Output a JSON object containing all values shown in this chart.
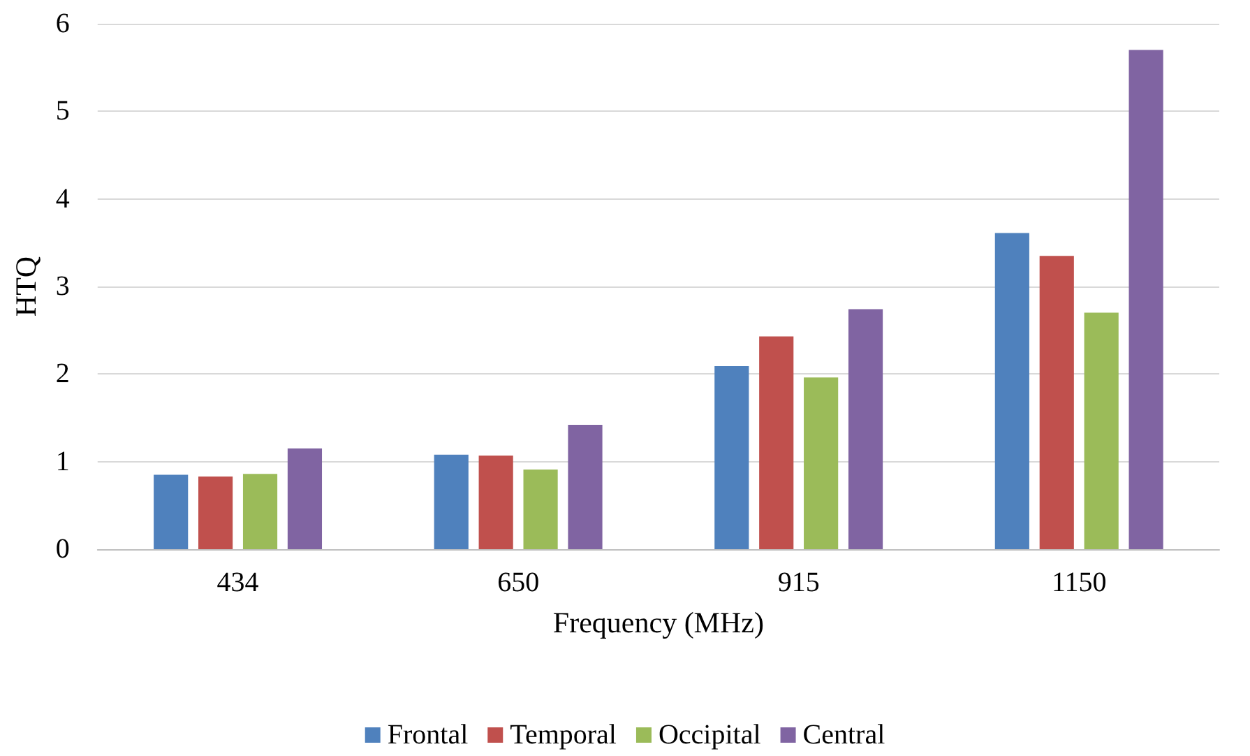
{
  "chart_data": {
    "type": "bar",
    "xlabel": "Frequency (MHz)",
    "ylabel": "HTQ",
    "categories": [
      "434",
      "650",
      "915",
      "1150"
    ],
    "series": [
      {
        "name": "Frontal",
        "color": "#4f81bd",
        "values": [
          0.85,
          1.08,
          2.09,
          3.61
        ]
      },
      {
        "name": "Temporal",
        "color": "#c0504d",
        "values": [
          0.83,
          1.07,
          2.43,
          3.35
        ]
      },
      {
        "name": "Occipital",
        "color": "#9bbb59",
        "values": [
          0.86,
          0.91,
          1.96,
          2.7
        ]
      },
      {
        "name": "Central",
        "color": "#8064a2",
        "values": [
          1.15,
          1.42,
          2.74,
          5.7
        ]
      }
    ],
    "ylim": [
      0,
      6
    ],
    "yticks": [
      0,
      1,
      2,
      3,
      4,
      5,
      6
    ],
    "grid": "y",
    "legend": "bottom"
  }
}
